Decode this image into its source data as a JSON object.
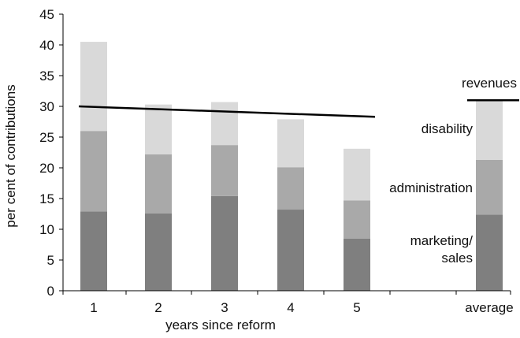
{
  "chart_data": {
    "type": "bar",
    "stacked": true,
    "title": "",
    "xlabel": "years since reform",
    "ylabel": "per cent of contributions",
    "ylim": [
      0,
      45
    ],
    "yticks": [
      0,
      5,
      10,
      15,
      20,
      25,
      30,
      35,
      40,
      45
    ],
    "categories": [
      "1",
      "2",
      "3",
      "4",
      "5",
      "average"
    ],
    "series": [
      {
        "name": "marketing/ sales",
        "values": [
          12.9,
          12.6,
          15.4,
          13.2,
          8.5,
          12.4
        ],
        "color": "#7f7f7f"
      },
      {
        "name": "administration",
        "values": [
          13.1,
          9.6,
          8.3,
          6.9,
          6.2,
          8.9
        ],
        "color": "#a9a9a9"
      },
      {
        "name": "disability",
        "values": [
          14.5,
          8.1,
          7.0,
          7.8,
          8.4,
          9.7
        ],
        "color": "#d9d9d9"
      }
    ],
    "revenues": {
      "name": "revenues",
      "line": {
        "x": [
          "1",
          "5"
        ],
        "y": [
          30.0,
          28.3
        ]
      },
      "average": 31.0,
      "color": "#000000"
    },
    "grid": false,
    "legend": "labels placed beside the average bar"
  }
}
